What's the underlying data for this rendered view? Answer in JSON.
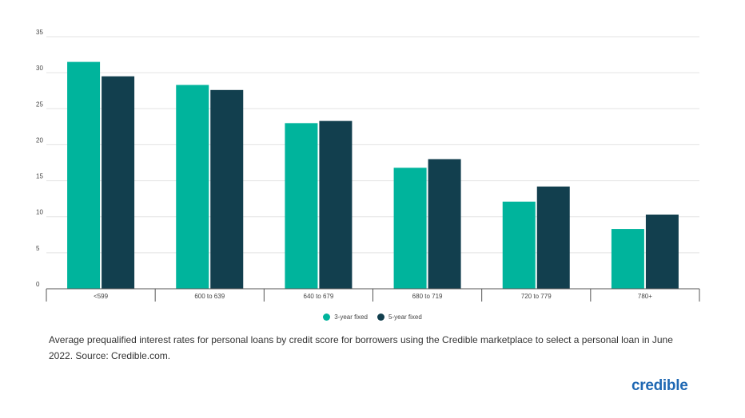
{
  "chart_data": {
    "type": "bar",
    "categories": [
      "<599",
      "600 to 639",
      "640 to 679",
      "680 to 719",
      "720 to 779",
      "780+"
    ],
    "series": [
      {
        "name": "3-year fixed",
        "values": [
          31.5,
          28.3,
          23.0,
          16.8,
          12.1,
          8.3
        ],
        "color": "#00b49c"
      },
      {
        "name": "5-year fixed",
        "values": [
          29.5,
          27.6,
          23.3,
          18.0,
          14.2,
          10.3
        ],
        "color": "#123f4e"
      }
    ],
    "yticks": [
      0,
      5,
      10,
      15,
      20,
      25,
      30,
      35
    ],
    "ylim": [
      0,
      35
    ],
    "grid": true,
    "legend_position": "bottom-center"
  },
  "caption": "Average prequalified interest rates for personal loans by credit score for borrowers using the Credible marketplace to select a personal loan in June 2022. Source: Credible.com.",
  "brand": "credible"
}
